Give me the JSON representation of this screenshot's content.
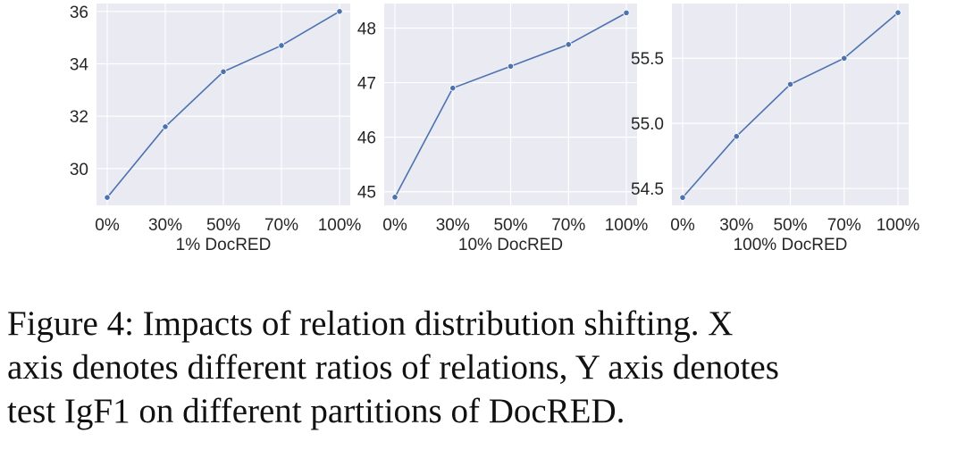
{
  "chart_data": [
    {
      "type": "line",
      "xlabel": "1% DocRED",
      "ylabel": "",
      "categories": [
        "0%",
        "30%",
        "50%",
        "70%",
        "100%"
      ],
      "values": [
        28.9,
        31.6,
        33.7,
        34.7,
        36.0
      ],
      "yticks": [
        30,
        32,
        34,
        36
      ],
      "ytick_labels": [
        "30",
        "32",
        "34",
        "36"
      ],
      "ylim": [
        28.6,
        36.3
      ],
      "grid": true,
      "color": "#4c72b0"
    },
    {
      "type": "line",
      "xlabel": "10% DocRED",
      "ylabel": "",
      "categories": [
        "0%",
        "30%",
        "50%",
        "70%",
        "100%"
      ],
      "values": [
        44.9,
        46.9,
        47.3,
        47.7,
        48.28
      ],
      "yticks": [
        45,
        46,
        47,
        48
      ],
      "ytick_labels": [
        "45",
        "46",
        "47",
        "48"
      ],
      "ylim": [
        44.75,
        48.45
      ],
      "grid": true,
      "color": "#4c72b0"
    },
    {
      "type": "line",
      "xlabel": "100% DocRED",
      "ylabel": "",
      "categories": [
        "0%",
        "30%",
        "50%",
        "70%",
        "100%"
      ],
      "values": [
        54.43,
        54.9,
        55.3,
        55.5,
        55.85
      ],
      "yticks": [
        54.5,
        55.0,
        55.5
      ],
      "ytick_labels": [
        "54.5",
        "55.0",
        "55.5"
      ],
      "ylim": [
        54.37,
        55.92
      ],
      "grid": true,
      "color": "#4c72b0"
    }
  ],
  "caption": {
    "lines": [
      "Figure 4: Impacts of relation distribution shifting. X",
      "axis denotes different ratios of relations, Y axis denotes",
      "test IgF1 on different partitions of DocRED."
    ]
  }
}
